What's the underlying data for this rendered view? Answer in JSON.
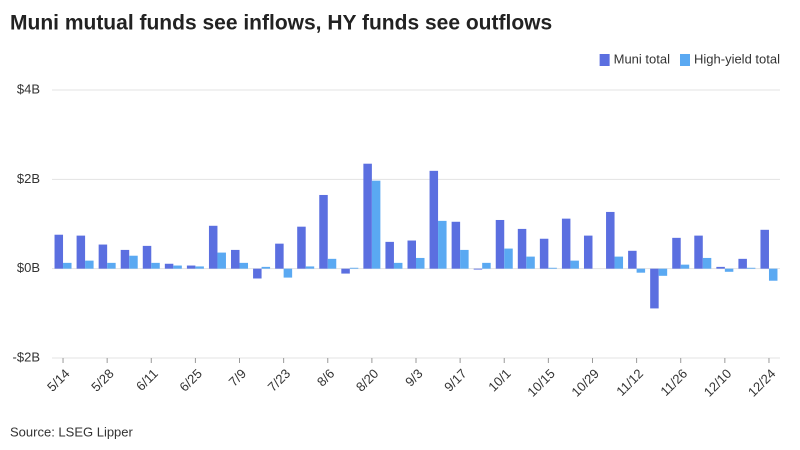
{
  "chart_data": {
    "type": "bar",
    "title": "Muni mutual funds see inflows, HY funds see outflows",
    "source": "Source: LSEG Lipper",
    "categories": [
      "5/14",
      null,
      "5/28",
      null,
      "6/11",
      null,
      "6/25",
      null,
      "7/9",
      null,
      "7/23",
      null,
      "8/6",
      null,
      "8/20",
      null,
      "9/3",
      null,
      "9/17",
      null,
      "10/1",
      null,
      "10/15",
      null,
      "10/29",
      null,
      "11/12",
      null,
      "11/26",
      null,
      "12/10",
      null,
      "12/24"
    ],
    "series": [
      {
        "name": "Muni total",
        "color": "#5b6fe0",
        "values": [
          0.76,
          0.74,
          0.54,
          0.42,
          0.51,
          0.11,
          0.07,
          0.96,
          0.42,
          -0.22,
          0.56,
          0.94,
          1.65,
          -0.11,
          2.35,
          0.6,
          0.63,
          2.19,
          1.05,
          -0.02,
          1.09,
          0.89,
          0.67,
          1.12,
          0.74,
          1.27,
          0.4,
          -0.89,
          0.69,
          0.74,
          0.04,
          0.22,
          0.87
        ]
      },
      {
        "name": "High-yield total",
        "color": "#5aa9f2",
        "values": [
          0.13,
          0.18,
          0.13,
          0.29,
          0.13,
          0.07,
          0.05,
          0.36,
          0.13,
          0.04,
          -0.2,
          0.05,
          0.22,
          0.02,
          1.97,
          0.13,
          0.24,
          1.07,
          0.42,
          0.13,
          0.45,
          0.27,
          0.02,
          0.18,
          0.0,
          0.27,
          -0.09,
          -0.16,
          0.09,
          0.24,
          -0.07,
          0.02,
          -0.27
        ]
      }
    ],
    "ylim": [
      -2,
      4
    ],
    "yticks": [
      {
        "value": -2,
        "label": "-$2B"
      },
      {
        "value": 0,
        "label": "$0B"
      },
      {
        "value": 2,
        "label": "$2B"
      },
      {
        "value": 4,
        "label": "$4B"
      }
    ],
    "grid": true,
    "legend": "top-right"
  }
}
